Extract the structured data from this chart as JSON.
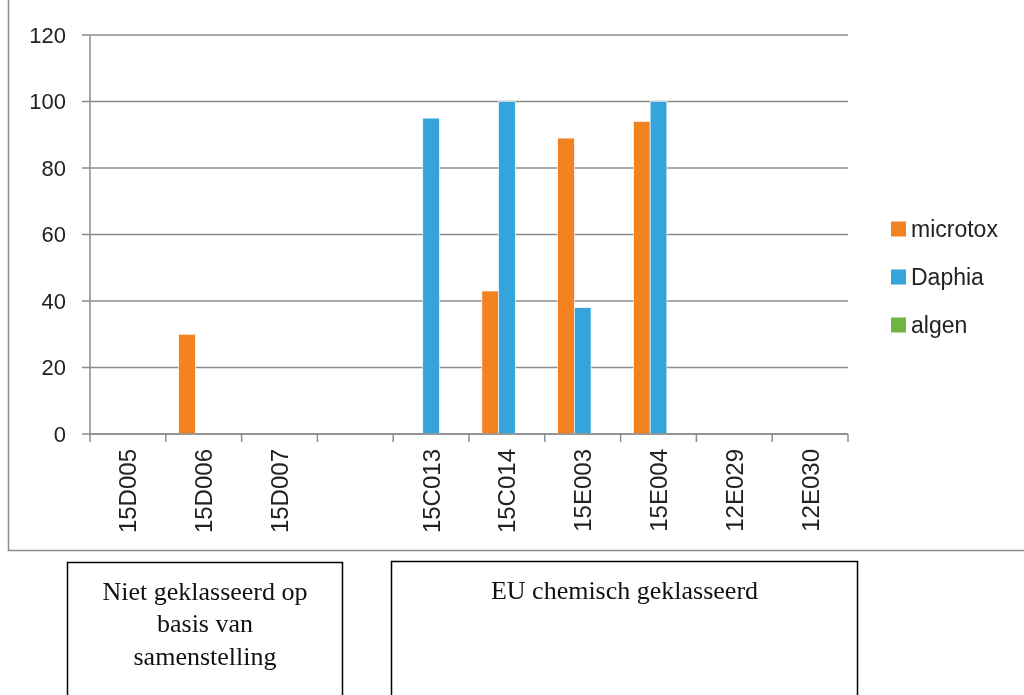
{
  "chart_data": {
    "type": "bar",
    "categories": [
      "15D005",
      "15D006",
      "15D007",
      null,
      "15C013",
      "15C014",
      "15E003",
      "15E004",
      "12E029",
      "12E030"
    ],
    "series": [
      {
        "name": "microtox",
        "color": "#f58220",
        "values": [
          null,
          30,
          null,
          null,
          null,
          43,
          89,
          94,
          null,
          null
        ]
      },
      {
        "name": "Daphia",
        "color": "#34a4db",
        "values": [
          null,
          null,
          null,
          null,
          95,
          100,
          38,
          100,
          null,
          null
        ]
      },
      {
        "name": "algen",
        "color": "#70b443",
        "values": [
          null,
          null,
          null,
          null,
          null,
          null,
          null,
          null,
          null,
          null
        ]
      }
    ],
    "ylim": [
      0,
      120
    ],
    "yticks": [
      0,
      20,
      40,
      60,
      80,
      100,
      120
    ],
    "grid": "y",
    "legend": "right",
    "annotations": [
      "Niet geklasseerd op basis van samenstelling",
      "EU chemisch geklasseerd"
    ]
  }
}
